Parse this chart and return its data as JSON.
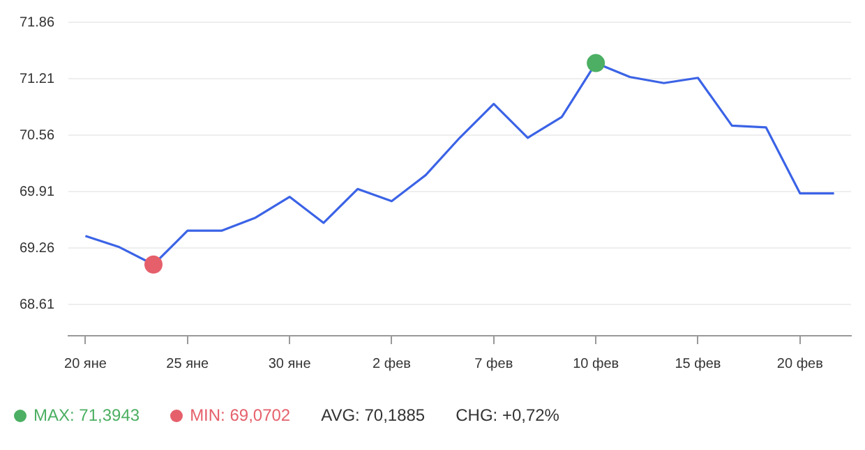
{
  "chart_data": {
    "type": "line",
    "categories": [
      "20 яне",
      null,
      null,
      "25 яне",
      null,
      null,
      "30 яне",
      null,
      null,
      "2 фев",
      null,
      null,
      "7 фев",
      null,
      null,
      "10 фев",
      null,
      null,
      "15 фев",
      null,
      null,
      "20 фев",
      null
    ],
    "series": [
      {
        "marker": "none",
        "color": "#3b63e6",
        "values": [
          69.4,
          69.27,
          69.07,
          69.46,
          69.46,
          69.61,
          69.85,
          69.55,
          69.94,
          69.8,
          70.1,
          70.53,
          70.92,
          70.53,
          70.77,
          71.39,
          71.23,
          71.16,
          71.22,
          70.67,
          70.65,
          69.89,
          69.89
        ]
      },
      {
        "type": "scatter",
        "marker": "circle",
        "name": "MAX: 71,3943",
        "color": "#4caf63",
        "values": [
          null,
          null,
          null,
          null,
          null,
          null,
          null,
          null,
          null,
          null,
          null,
          null,
          null,
          null,
          null,
          71.39,
          null,
          null,
          null,
          null,
          null,
          null,
          null
        ]
      },
      {
        "type": "scatter",
        "marker": "circle",
        "name": "MIN: 69,0702",
        "color": "#e5606b",
        "values": [
          null,
          null,
          69.07,
          null,
          null,
          null,
          null,
          null,
          null,
          null,
          null,
          null,
          null,
          null,
          null,
          null,
          null,
          null,
          null,
          null,
          null,
          null,
          null
        ]
      }
    ],
    "ylim": [
      68.25,
      71.86
    ],
    "yticks": [
      68.61,
      69.26,
      69.91,
      70.56,
      71.21,
      71.86
    ],
    "grid": "y",
    "legend": "bottom left",
    "annotations": [
      "AVG: 70,1885",
      "CHG: +0,72%"
    ]
  }
}
